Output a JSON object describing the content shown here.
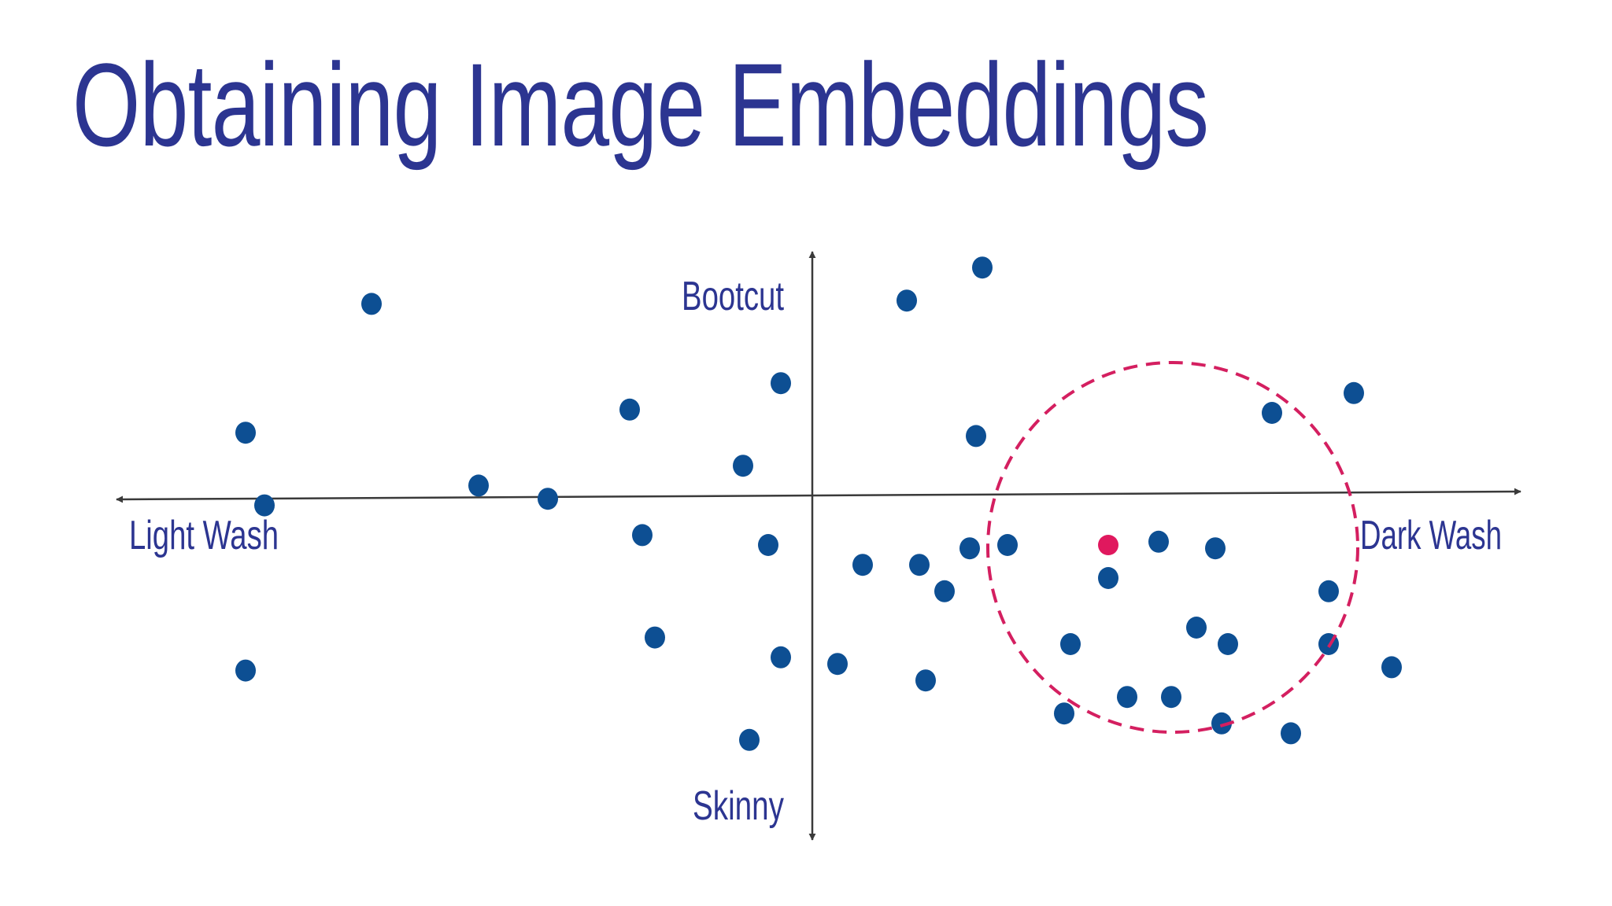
{
  "slide": {
    "title": "Obtaining Image Embeddings"
  },
  "colors": {
    "title": "#2c3591",
    "label": "#2c3591",
    "axis": "#3a3a3a",
    "point": "#0d4f93",
    "query_point": "#e0185e",
    "neighborhood_circle": "#d41f60"
  },
  "axes": {
    "x": {
      "negative_label": "Light Wash",
      "positive_label": "Dark Wash"
    },
    "y": {
      "positive_label": "Bootcut",
      "negative_label": "Skinny"
    }
  },
  "points": [
    [
      -0.7,
      0.58
    ],
    [
      -0.9,
      0.19
    ],
    [
      -0.53,
      0.03
    ],
    [
      -0.42,
      -0.01
    ],
    [
      -0.87,
      -0.03
    ],
    [
      -0.9,
      -0.53
    ],
    [
      -0.25,
      -0.43
    ],
    [
      -0.29,
      0.26
    ],
    [
      -0.05,
      0.34
    ],
    [
      -0.11,
      0.09
    ],
    [
      -0.27,
      -0.12
    ],
    [
      -0.07,
      -0.15
    ],
    [
      -0.05,
      -0.49
    ],
    [
      -0.1,
      -0.74
    ],
    [
      0.04,
      -0.51
    ],
    [
      0.08,
      -0.21
    ],
    [
      0.17,
      -0.21
    ],
    [
      0.18,
      -0.56
    ],
    [
      0.15,
      0.59
    ],
    [
      0.27,
      0.69
    ],
    [
      0.26,
      0.18
    ],
    [
      0.25,
      -0.16
    ],
    [
      0.21,
      -0.29
    ],
    [
      0.31,
      -0.15
    ],
    [
      0.41,
      -0.45
    ],
    [
      0.4,
      -0.66
    ],
    [
      0.47,
      -0.25
    ],
    [
      0.5,
      -0.61
    ],
    [
      0.57,
      -0.61
    ],
    [
      0.55,
      -0.14
    ],
    [
      0.61,
      -0.4
    ],
    [
      0.64,
      -0.16
    ],
    [
      0.66,
      -0.45
    ],
    [
      0.73,
      0.25
    ],
    [
      0.82,
      -0.45
    ],
    [
      0.65,
      -0.69
    ],
    [
      0.76,
      -0.72
    ],
    [
      0.82,
      -0.29
    ],
    [
      0.86,
      0.31
    ],
    [
      0.92,
      -0.52
    ]
  ],
  "query_point": [
    0.47,
    -0.15
  ]
}
